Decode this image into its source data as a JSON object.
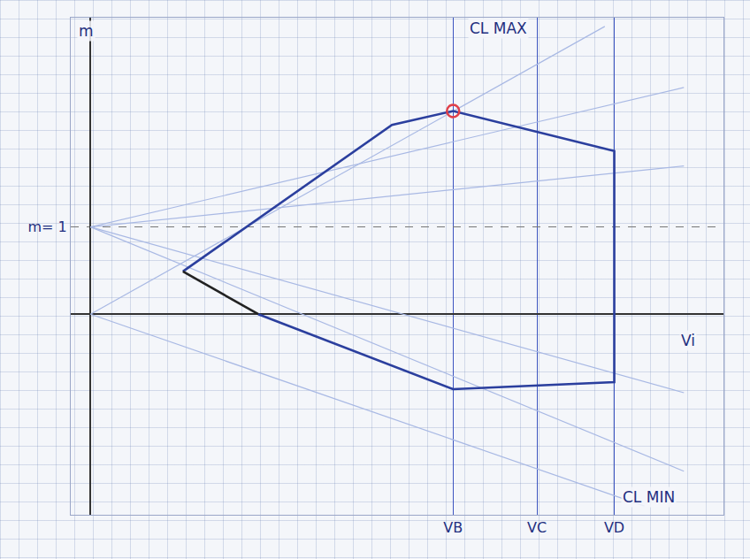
{
  "chart_data": {
    "type": "line",
    "xlim": [
      -1,
      32
    ],
    "ylim": [
      -2.3,
      3.4
    ],
    "xticks": [
      {
        "value": 18.33,
        "label": "VB"
      },
      {
        "value": 22.57,
        "label": "VC"
      },
      {
        "value": 26.48,
        "label": "VD"
      }
    ],
    "yticks": [
      {
        "value": 1,
        "label": "m= 1"
      }
    ],
    "grid": true,
    "series": [
      {
        "type": "line",
        "color": "#a9b9e4",
        "x": [
          0,
          26
        ],
        "values": [
          0,
          3.3
        ]
      },
      {
        "type": "line",
        "color": "#a9b9e4",
        "x": [
          0,
          30
        ],
        "values": [
          1,
          2.6
        ]
      },
      {
        "type": "line",
        "color": "#a9b9e4",
        "x": [
          0,
          30
        ],
        "values": [
          1,
          1.7
        ]
      },
      {
        "type": "line",
        "color": "#a9b9e4",
        "x": [
          0,
          30
        ],
        "values": [
          1,
          -0.9
        ]
      },
      {
        "type": "line",
        "color": "#a9b9e4",
        "x": [
          0,
          30
        ],
        "values": [
          1,
          -1.8
        ]
      },
      {
        "type": "line",
        "color": "#a9b9e4",
        "x": [
          0,
          28
        ],
        "values": [
          0,
          -2.2
        ]
      },
      {
        "type": "line",
        "color": "#2b3f9e",
        "x": [
          4.67,
          15.24,
          18.33,
          26.48,
          26.48,
          18.33,
          8.48
        ],
        "values": [
          0.49,
          2.17,
          2.33,
          1.87,
          -0.78,
          -0.86,
          0
        ]
      },
      {
        "type": "line",
        "color": "#222222",
        "x": [
          4.67,
          8.48
        ],
        "values": [
          0.49,
          0
        ]
      },
      {
        "type": "scatter",
        "color": "#e0404a",
        "marker": "circle-open",
        "x": [
          18.33
        ],
        "values": [
          2.33
        ]
      }
    ],
    "annotations": [
      {
        "text": "m",
        "x": -0.2,
        "y": 3.25
      },
      {
        "text": "Vi",
        "x": 30.2,
        "y": -0.3
      },
      {
        "text": "CL MAX",
        "x": 20.6,
        "y": 3.28
      },
      {
        "text": "CL MIN",
        "x": 28.2,
        "y": -2.1
      }
    ],
    "tick_labels": true
  }
}
